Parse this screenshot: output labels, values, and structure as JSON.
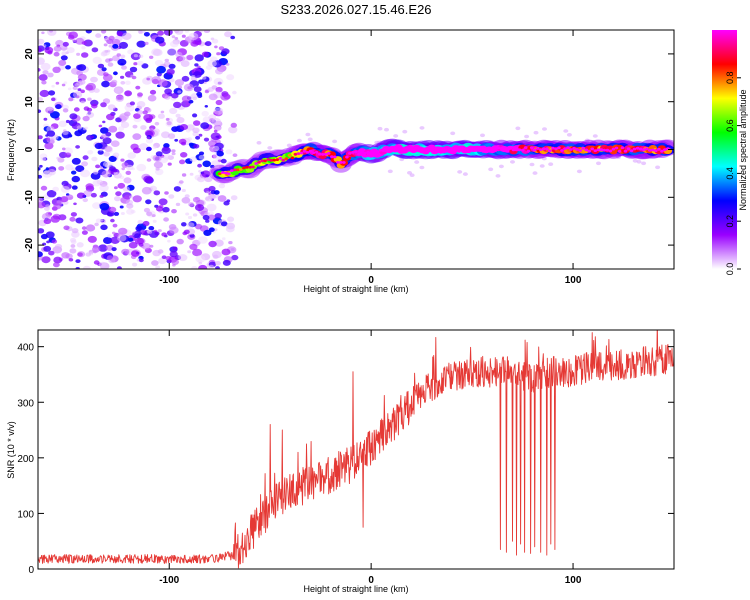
{
  "title": "S233.2026.027.15.46.E26",
  "chart_data": [
    {
      "type": "heatmap",
      "name": "spectrogram",
      "xlabel": "Height of straight line (km)",
      "ylabel": "Frequency (Hz)",
      "xlim": [
        -165,
        150
      ],
      "ylim": [
        -25,
        25
      ],
      "xticks": [
        -100,
        0,
        100
      ],
      "yticks": [
        20,
        10,
        0,
        -10,
        -20
      ],
      "noise_region_x": [
        -165,
        -67
      ],
      "signal_track": {
        "x": [
          -75,
          -70,
          -65,
          -60,
          -55,
          -50,
          -45,
          -40,
          -35,
          -30,
          -25,
          -20,
          -15,
          -10,
          -5,
          0,
          5,
          10,
          15,
          20,
          30,
          40,
          50,
          60,
          70,
          80,
          90,
          100,
          110,
          120,
          130,
          140,
          148
        ],
        "freq": [
          -5,
          -5,
          -4,
          -4,
          -2.5,
          -2,
          -2,
          -1.5,
          -1,
          0,
          -1,
          -1,
          -3,
          -1,
          -0.5,
          -1,
          -0.5,
          0.3,
          0,
          0,
          0,
          0,
          0,
          0,
          0,
          0,
          0,
          0,
          0,
          0,
          0,
          0,
          0
        ],
        "amplitude": [
          0.35,
          0.45,
          0.3,
          0.35,
          0.4,
          0.35,
          0.4,
          0.3,
          0.5,
          0.6,
          0.65,
          0.55,
          0.45,
          0.6,
          0.7,
          0.85,
          0.8,
          0.85,
          0.95,
          0.95,
          0.95,
          0.9,
          0.9,
          0.75,
          0.7,
          0.6,
          0.55,
          0.6,
          0.55,
          0.55,
          0.6,
          0.55,
          0.55
        ]
      },
      "colorbar": {
        "label": "Normalized spectral amplitude",
        "range": [
          0,
          1
        ],
        "ticks": [
          "0.0",
          "0.2",
          "0.4",
          "0.6",
          "0.8"
        ],
        "colors": [
          "#ffffff",
          "#9900ff",
          "#0000ff",
          "#00ffff",
          "#00ff00",
          "#ffff00",
          "#ff0000",
          "#ff00ff"
        ]
      }
    },
    {
      "type": "line",
      "name": "snr",
      "xlabel": "Height of straight line (km)",
      "ylabel": "SNR (10 * v/v)",
      "xlim": [
        -165,
        150
      ],
      "ylim": [
        0,
        430
      ],
      "xticks": [
        -100,
        0,
        100
      ],
      "yticks": [
        0,
        100,
        200,
        300,
        400
      ],
      "color": "#e53935",
      "trend": {
        "x": [
          -165,
          -130,
          -100,
          -80,
          -68,
          -60,
          -50,
          -40,
          -30,
          -20,
          -10,
          0,
          10,
          20,
          30,
          40,
          50,
          60,
          70,
          80,
          90,
          100,
          110,
          120,
          130,
          140,
          150
        ],
        "y": [
          18,
          18,
          18,
          18,
          25,
          60,
          110,
          145,
          150,
          170,
          190,
          220,
          260,
          300,
          330,
          345,
          355,
          355,
          355,
          345,
          355,
          355,
          365,
          365,
          370,
          375,
          380
        ]
      },
      "spikes": [
        {
          "x": -50,
          "y": 260
        },
        {
          "x": -44,
          "y": 250
        },
        {
          "x": -32,
          "y": 225
        },
        {
          "x": -9,
          "y": 355
        },
        {
          "x": -4,
          "y": 75
        }
      ],
      "dropouts": {
        "x": [
          64,
          67,
          70,
          72,
          74,
          76,
          79,
          81,
          84,
          87,
          89,
          91
        ],
        "y": [
          35,
          30,
          50,
          25,
          45,
          30,
          28,
          40,
          30,
          25,
          45,
          35
        ]
      }
    }
  ]
}
